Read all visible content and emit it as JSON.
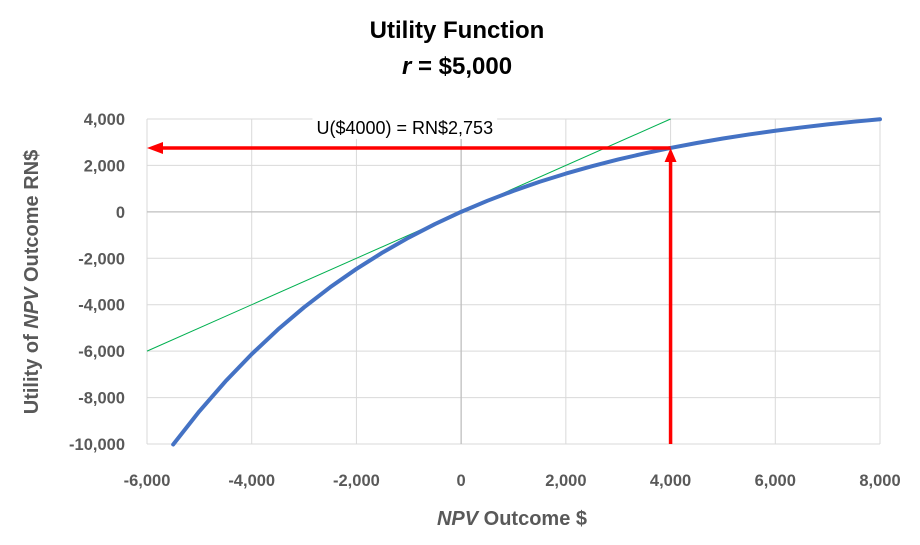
{
  "chart_data": {
    "type": "line",
    "title": "Utility Function",
    "subtitle": {
      "var": "r",
      "rest": " = $5,000"
    },
    "xlabel": {
      "italic": "NPV",
      "rest": " Outcome $"
    },
    "ylabel": {
      "pre": "Utility of ",
      "italic": "NPV",
      "rest": " Outcome RN$"
    },
    "xlim": [
      -6000,
      8000
    ],
    "ylim": [
      -10000,
      4000
    ],
    "x_ticks": [
      "-6,000",
      "-4,000",
      "-2,000",
      "0",
      "2,000",
      "4,000",
      "6,000",
      "8,000"
    ],
    "x_tick_values": [
      -6000,
      -4000,
      -2000,
      0,
      2000,
      4000,
      6000,
      8000
    ],
    "y_ticks": [
      "4,000",
      "2,000",
      "0",
      "-2,000",
      "-4,000",
      "-6,000",
      "-8,000",
      "-10,000"
    ],
    "y_tick_values": [
      4000,
      2000,
      0,
      -2000,
      -4000,
      -6000,
      -8000,
      -10000
    ],
    "grid": true,
    "series": [
      {
        "color": "#4472c4",
        "x": [
          -5500,
          -5000,
          -4500,
          -4000,
          -3500,
          -3000,
          -2500,
          -2000,
          -1500,
          -1000,
          -500,
          0,
          500,
          1000,
          1500,
          2000,
          2500,
          3000,
          3500,
          4000,
          4500,
          5000,
          5500,
          6000,
          6500,
          7000,
          7500,
          8000
        ],
        "y": [
          -10021,
          -8591,
          -7298,
          -6128,
          -5069,
          -4111,
          -3244,
          -2459,
          -1749,
          -1107,
          -526,
          0,
          476,
          906,
          1296,
          1648,
          1967,
          2256,
          2517,
          2753,
          2967,
          3161,
          3336,
          3494,
          3637,
          3767,
          3884,
          3990
        ]
      },
      {
        "color": "#00b050",
        "x": [
          -6000,
          4000
        ],
        "y": [
          -6000,
          4000
        ]
      }
    ],
    "annotation": {
      "text": "U($4000) = RN$2,753",
      "x": 4000,
      "y": 2753,
      "arrow_color": "#ff0000"
    }
  }
}
